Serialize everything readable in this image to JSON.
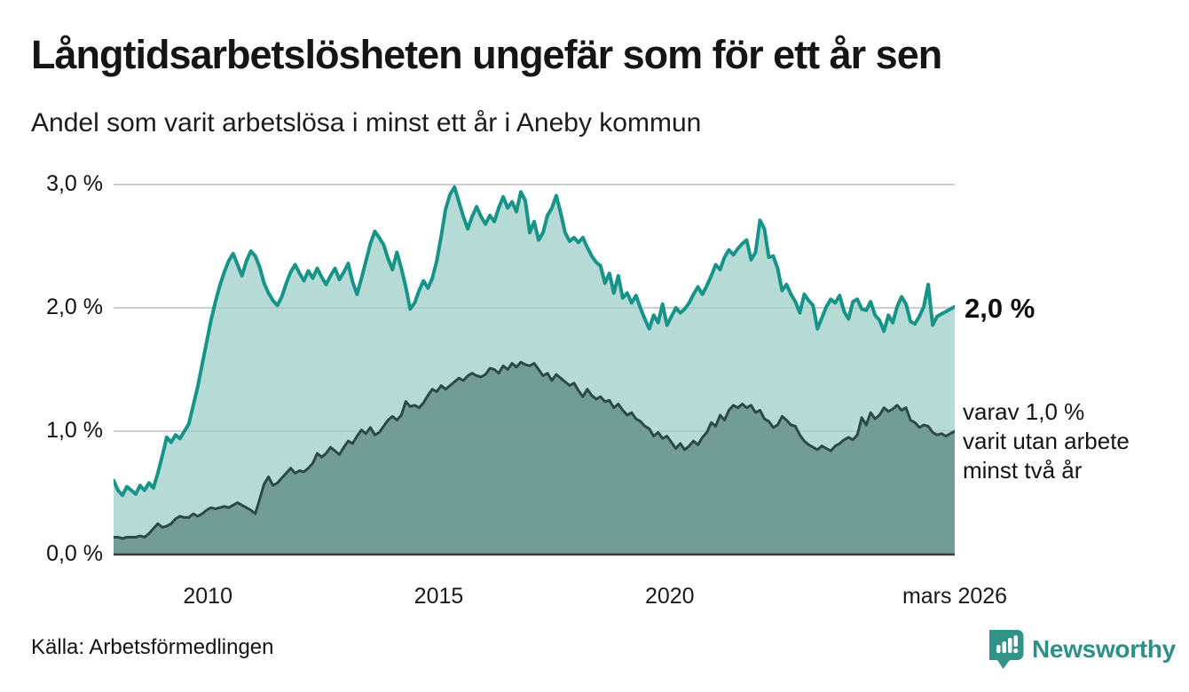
{
  "header": {
    "title": "Långtidsarbetslösheten ungefär som för ett år sen",
    "subtitle": "Andel som varit arbetslösa i minst ett år i Aneby kommun"
  },
  "annotations": {
    "latest_value": "2,0 %",
    "secondary_line1": "varav 1,0 %",
    "secondary_line2": "varit utan arbete",
    "secondary_line3": "minst två år"
  },
  "footer": {
    "source": "Källa: Arbetsförmedlingen",
    "logo_text": "Newsworthy"
  },
  "colors": {
    "primary_line": "#17948a",
    "primary_fill": "#aed7d1",
    "secondary_line": "#2b4a43",
    "secondary_fill": "#6f9a93",
    "gridline": "#d9d9d9",
    "baseline": "#3c3c3c",
    "logo_teal": "#2f9487",
    "logo_text_teal": "#2d8f89"
  },
  "chart_data": {
    "type": "area",
    "title": "Långtidsarbetslösheten ungefär som för ett år sen",
    "subtitle": "Andel som varit arbetslösa i minst ett år i Aneby kommun",
    "unit": "%",
    "x_start": 2007.96,
    "x_end": 2026.17,
    "ylim": [
      0,
      3.0
    ],
    "grid": true,
    "y_ticks": [
      {
        "label": "3,0 %",
        "value": 3.0
      },
      {
        "label": "2,0 %",
        "value": 2.0
      },
      {
        "label": "1,0 %",
        "value": 1.0
      },
      {
        "label": "0,0 %",
        "value": 0.0
      }
    ],
    "x_ticks": [
      {
        "label": "2010",
        "year": 2010
      },
      {
        "label": "2015",
        "year": 2015
      },
      {
        "label": "2020",
        "year": 2020
      },
      {
        "label": "mars 2026",
        "year": 2026.17
      }
    ],
    "series": [
      {
        "name": "Andel arbetslösa minst ett år",
        "latest_label": "2,0 %",
        "values": [
          0.6,
          0.52,
          0.48,
          0.55,
          0.52,
          0.49,
          0.56,
          0.52,
          0.58,
          0.54,
          0.66,
          0.8,
          0.95,
          0.91,
          0.97,
          0.94,
          1.0,
          1.06,
          1.21,
          1.36,
          1.54,
          1.72,
          1.9,
          2.05,
          2.18,
          2.29,
          2.38,
          2.44,
          2.35,
          2.26,
          2.38,
          2.46,
          2.42,
          2.33,
          2.2,
          2.12,
          2.06,
          2.02,
          2.09,
          2.2,
          2.29,
          2.35,
          2.28,
          2.22,
          2.3,
          2.24,
          2.32,
          2.25,
          2.19,
          2.26,
          2.32,
          2.23,
          2.29,
          2.36,
          2.21,
          2.11,
          2.24,
          2.38,
          2.52,
          2.62,
          2.57,
          2.51,
          2.4,
          2.31,
          2.45,
          2.32,
          2.17,
          1.99,
          2.04,
          2.14,
          2.22,
          2.16,
          2.24,
          2.38,
          2.58,
          2.8,
          2.92,
          2.98,
          2.86,
          2.74,
          2.64,
          2.74,
          2.82,
          2.74,
          2.68,
          2.75,
          2.7,
          2.81,
          2.9,
          2.81,
          2.86,
          2.78,
          2.94,
          2.87,
          2.61,
          2.7,
          2.55,
          2.61,
          2.75,
          2.81,
          2.91,
          2.77,
          2.61,
          2.54,
          2.57,
          2.53,
          2.57,
          2.49,
          2.42,
          2.37,
          2.34,
          2.2,
          2.28,
          2.12,
          2.26,
          2.08,
          2.12,
          2.04,
          2.1,
          2.0,
          1.91,
          1.83,
          1.94,
          1.88,
          2.03,
          1.86,
          1.93,
          2.0,
          1.96,
          1.99,
          2.04,
          2.11,
          2.17,
          2.11,
          2.18,
          2.26,
          2.35,
          2.31,
          2.41,
          2.47,
          2.43,
          2.48,
          2.52,
          2.55,
          2.39,
          2.45,
          2.71,
          2.64,
          2.41,
          2.42,
          2.32,
          2.14,
          2.19,
          2.11,
          2.05,
          1.96,
          2.11,
          2.06,
          2.02,
          1.83,
          1.92,
          2.01,
          2.07,
          2.04,
          2.1,
          1.97,
          1.91,
          2.05,
          2.07,
          1.99,
          1.98,
          2.05,
          1.94,
          1.9,
          1.81,
          1.94,
          1.88,
          2.01,
          2.09,
          2.03,
          1.89,
          1.87,
          1.93,
          2.01,
          2.19,
          1.86,
          1.93,
          1.95,
          1.97,
          1.99,
          2.01
        ]
      },
      {
        "name": "varav utan arbete minst två år",
        "latest_label": "varav 1,0 % varit utan arbete minst två år",
        "values": [
          0.14,
          0.14,
          0.13,
          0.14,
          0.14,
          0.14,
          0.15,
          0.14,
          0.17,
          0.21,
          0.25,
          0.22,
          0.23,
          0.25,
          0.29,
          0.31,
          0.3,
          0.3,
          0.33,
          0.31,
          0.33,
          0.36,
          0.38,
          0.37,
          0.38,
          0.39,
          0.38,
          0.4,
          0.42,
          0.4,
          0.38,
          0.36,
          0.33,
          0.45,
          0.57,
          0.63,
          0.56,
          0.58,
          0.62,
          0.66,
          0.7,
          0.66,
          0.68,
          0.67,
          0.7,
          0.74,
          0.82,
          0.79,
          0.82,
          0.87,
          0.84,
          0.81,
          0.87,
          0.92,
          0.9,
          0.96,
          1.01,
          0.98,
          1.03,
          0.97,
          0.99,
          1.04,
          1.09,
          1.12,
          1.09,
          1.13,
          1.24,
          1.2,
          1.21,
          1.19,
          1.23,
          1.29,
          1.34,
          1.32,
          1.37,
          1.34,
          1.37,
          1.4,
          1.43,
          1.41,
          1.45,
          1.47,
          1.45,
          1.44,
          1.46,
          1.51,
          1.5,
          1.47,
          1.53,
          1.5,
          1.55,
          1.52,
          1.56,
          1.54,
          1.53,
          1.55,
          1.5,
          1.45,
          1.47,
          1.41,
          1.46,
          1.43,
          1.4,
          1.37,
          1.39,
          1.33,
          1.28,
          1.34,
          1.29,
          1.26,
          1.28,
          1.24,
          1.25,
          1.19,
          1.22,
          1.17,
          1.13,
          1.15,
          1.1,
          1.08,
          1.04,
          1.02,
          0.96,
          0.99,
          0.94,
          0.96,
          0.91,
          0.86,
          0.9,
          0.85,
          0.88,
          0.92,
          0.89,
          0.95,
          0.99,
          1.07,
          1.04,
          1.13,
          1.09,
          1.17,
          1.21,
          1.19,
          1.22,
          1.19,
          1.21,
          1.15,
          1.17,
          1.1,
          1.08,
          1.03,
          1.05,
          1.12,
          1.09,
          1.05,
          1.04,
          0.97,
          0.92,
          0.89,
          0.87,
          0.85,
          0.88,
          0.86,
          0.84,
          0.88,
          0.9,
          0.93,
          0.95,
          0.93,
          0.97,
          1.11,
          1.05,
          1.15,
          1.1,
          1.13,
          1.19,
          1.16,
          1.18,
          1.21,
          1.17,
          1.19,
          1.09,
          1.07,
          1.03,
          1.05,
          1.04,
          0.99,
          0.97,
          0.98,
          0.96,
          0.98,
          1.0
        ]
      }
    ]
  }
}
